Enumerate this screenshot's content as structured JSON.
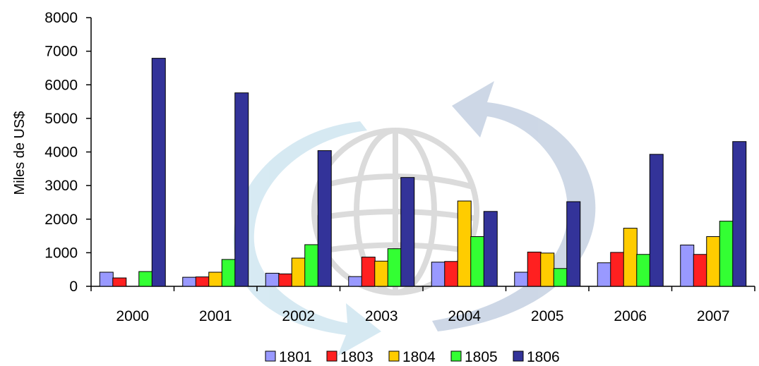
{
  "chart_data": {
    "type": "bar",
    "title": "",
    "xlabel": "",
    "ylabel": "Miles de US$",
    "ylim": [
      0,
      8000
    ],
    "yticks": [
      0,
      1000,
      2000,
      3000,
      4000,
      5000,
      6000,
      7000,
      8000
    ],
    "ytick_labels": [
      "0",
      "1000",
      "2000",
      "3000",
      "4000",
      "5000",
      "6000",
      "7000",
      "8000"
    ],
    "categories": [
      "2000",
      "2001",
      "2002",
      "2003",
      "2004",
      "2005",
      "2006",
      "2007"
    ],
    "grid": false,
    "legend_position": "bottom",
    "series": [
      {
        "name": "1801",
        "color": "#9999ff",
        "values": [
          420,
          270,
          390,
          290,
          720,
          420,
          700,
          1230
        ]
      },
      {
        "name": "1803",
        "color": "#ff2020",
        "values": [
          250,
          280,
          370,
          870,
          740,
          1020,
          1010,
          950
        ]
      },
      {
        "name": "1804",
        "color": "#ffcc00",
        "values": [
          0,
          420,
          840,
          750,
          2540,
          990,
          1730,
          1480
        ]
      },
      {
        "name": "1805",
        "color": "#33ff33",
        "values": [
          440,
          800,
          1240,
          1120,
          1480,
          530,
          950,
          1940
        ]
      },
      {
        "name": "1806",
        "color": "#333399",
        "values": [
          6790,
          5760,
          4040,
          3240,
          2230,
          2520,
          3930,
          4310
        ]
      }
    ]
  }
}
